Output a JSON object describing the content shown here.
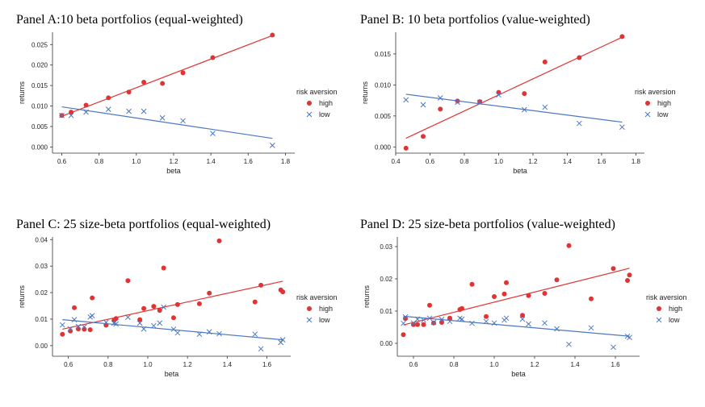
{
  "colors": {
    "high": "#e03434",
    "low": "#4a78c4",
    "axis": "#333333"
  },
  "legend": {
    "title": "risk aversion",
    "high_label": "high",
    "low_label": "low"
  },
  "chart_data": [
    {
      "id": "A",
      "type": "scatter",
      "title": "Panel A:10 beta portfolios (equal-weighted)",
      "xlabel": "beta",
      "ylabel": "returns",
      "xlim": [
        0.55,
        1.85
      ],
      "ylim": [
        -0.0015,
        0.028
      ],
      "xticks": [
        0.6,
        0.8,
        1.0,
        1.2,
        1.4,
        1.6,
        1.8
      ],
      "xtick_labels": [
        "0.6",
        "0.8",
        "1.0",
        "1.2",
        "1.4",
        "1.6",
        "1.8"
      ],
      "yticks": [
        0,
        0.005,
        0.01,
        0.015,
        0.02,
        0.025
      ],
      "ytick_labels": [
        "0.000",
        "0.005",
        "0.010",
        "0.015",
        "0.020",
        "0.025"
      ],
      "series": [
        {
          "name": "high",
          "points": [
            [
              0.6,
              0.0077
            ],
            [
              0.65,
              0.0085
            ],
            [
              0.73,
              0.0102
            ],
            [
              0.85,
              0.012
            ],
            [
              0.96,
              0.0134
            ],
            [
              1.04,
              0.0158
            ],
            [
              1.14,
              0.0155
            ],
            [
              1.25,
              0.0181
            ],
            [
              1.41,
              0.0218
            ],
            [
              1.73,
              0.0273
            ]
          ],
          "fit": [
            [
              0.6,
              0.0075
            ],
            [
              1.73,
              0.0272
            ]
          ]
        },
        {
          "name": "low",
          "points": [
            [
              0.6,
              0.0077
            ],
            [
              0.65,
              0.0077
            ],
            [
              0.73,
              0.0085
            ],
            [
              0.85,
              0.0092
            ],
            [
              0.96,
              0.0087
            ],
            [
              1.04,
              0.0087
            ],
            [
              1.14,
              0.0071
            ],
            [
              1.25,
              0.0064
            ],
            [
              1.41,
              0.0033
            ],
            [
              1.73,
              0.0004
            ]
          ],
          "fit": [
            [
              0.6,
              0.0098
            ],
            [
              1.73,
              0.0021
            ]
          ]
        }
      ],
      "legend_position": "right"
    },
    {
      "id": "B",
      "type": "scatter",
      "title": "Panel B: 10 beta portfolios (value-weighted)",
      "xlabel": "beta",
      "ylabel": "returns",
      "xlim": [
        0.4,
        1.85
      ],
      "ylim": [
        -0.001,
        0.0185
      ],
      "xticks": [
        0.4,
        0.6,
        0.8,
        1.0,
        1.2,
        1.4,
        1.6,
        1.8
      ],
      "xtick_labels": [
        "0.4",
        "0.6",
        "0.8",
        "1.0",
        "1.2",
        "1.4",
        "1.6",
        "1.8"
      ],
      "yticks": [
        0,
        0.005,
        0.01,
        0.015
      ],
      "ytick_labels": [
        "0.000",
        "0.005",
        "0.010",
        "0.015"
      ],
      "series": [
        {
          "name": "high",
          "points": [
            [
              0.46,
              -0.0002
            ],
            [
              0.56,
              0.0017
            ],
            [
              0.66,
              0.0061
            ],
            [
              0.76,
              0.0074
            ],
            [
              0.89,
              0.0073
            ],
            [
              1.0,
              0.0088
            ],
            [
              1.15,
              0.0086
            ],
            [
              1.27,
              0.0137
            ],
            [
              1.47,
              0.0144
            ],
            [
              1.72,
              0.0178
            ]
          ],
          "fit": [
            [
              0.46,
              0.0014
            ],
            [
              1.72,
              0.0177
            ]
          ]
        },
        {
          "name": "low",
          "points": [
            [
              0.46,
              0.0076
            ],
            [
              0.56,
              0.0068
            ],
            [
              0.66,
              0.0079
            ],
            [
              0.76,
              0.0072
            ],
            [
              0.89,
              0.0072
            ],
            [
              1.0,
              0.0084
            ],
            [
              1.15,
              0.006
            ],
            [
              1.27,
              0.0064
            ],
            [
              1.47,
              0.0038
            ],
            [
              1.72,
              0.0032
            ]
          ],
          "fit": [
            [
              0.46,
              0.0085
            ],
            [
              1.72,
              0.004
            ]
          ]
        }
      ],
      "legend_position": "right"
    },
    {
      "id": "C",
      "type": "scatter",
      "title": "Panel C: 25 size-beta portfolios (equal-weighted)",
      "xlabel": "beta",
      "ylabel": "returns",
      "xlim": [
        0.52,
        1.72
      ],
      "ylim": [
        -0.004,
        0.041
      ],
      "xticks": [
        0.6,
        0.8,
        1.0,
        1.2,
        1.4,
        1.6
      ],
      "xtick_labels": [
        "0.6",
        "0.8",
        "1.0",
        "1.2",
        "1.4",
        "1.6"
      ],
      "yticks": [
        0,
        0.01,
        0.02,
        0.03,
        0.04
      ],
      "ytick_labels": [
        "0.00",
        "0.01",
        "0.02",
        "0.03",
        "0.04"
      ],
      "series": [
        {
          "name": "high",
          "points": [
            [
              0.57,
              0.0043
            ],
            [
              0.61,
              0.0055
            ],
            [
              0.63,
              0.0143
            ],
            [
              0.65,
              0.0063
            ],
            [
              0.68,
              0.0062
            ],
            [
              0.71,
              0.006
            ],
            [
              0.72,
              0.018
            ],
            [
              0.79,
              0.0077
            ],
            [
              0.83,
              0.0095
            ],
            [
              0.84,
              0.0102
            ],
            [
              0.9,
              0.0245
            ],
            [
              0.96,
              0.0098
            ],
            [
              0.98,
              0.014
            ],
            [
              1.03,
              0.0148
            ],
            [
              1.06,
              0.0133
            ],
            [
              1.08,
              0.0293
            ],
            [
              1.13,
              0.0105
            ],
            [
              1.15,
              0.0155
            ],
            [
              1.26,
              0.0158
            ],
            [
              1.31,
              0.0198
            ],
            [
              1.36,
              0.0395
            ],
            [
              1.54,
              0.0165
            ],
            [
              1.57,
              0.0228
            ],
            [
              1.67,
              0.021
            ],
            [
              1.68,
              0.0203
            ]
          ],
          "fit": [
            [
              0.57,
              0.0062
            ],
            [
              1.68,
              0.0243
            ]
          ]
        },
        {
          "name": "low",
          "points": [
            [
              0.57,
              0.0078
            ],
            [
              0.61,
              0.0063
            ],
            [
              0.63,
              0.0098
            ],
            [
              0.65,
              0.0072
            ],
            [
              0.68,
              0.0071
            ],
            [
              0.71,
              0.0108
            ],
            [
              0.72,
              0.0113
            ],
            [
              0.79,
              0.0088
            ],
            [
              0.83,
              0.0085
            ],
            [
              0.84,
              0.0082
            ],
            [
              0.9,
              0.0107
            ],
            [
              0.96,
              0.0085
            ],
            [
              0.98,
              0.0063
            ],
            [
              1.03,
              0.0075
            ],
            [
              1.06,
              0.0085
            ],
            [
              1.08,
              0.0145
            ],
            [
              1.13,
              0.0062
            ],
            [
              1.15,
              0.0048
            ],
            [
              1.26,
              0.0043
            ],
            [
              1.31,
              0.0052
            ],
            [
              1.36,
              0.0045
            ],
            [
              1.54,
              0.0043
            ],
            [
              1.57,
              -0.0012
            ],
            [
              1.67,
              0.0012
            ],
            [
              1.68,
              0.0022
            ]
          ],
          "fit": [
            [
              0.57,
              0.0098
            ],
            [
              1.68,
              0.0022
            ]
          ]
        }
      ],
      "legend_position": "right"
    },
    {
      "id": "D",
      "type": "scatter",
      "title": "Panel D: 25 size-beta portfolios (value-weighted)",
      "xlabel": "beta",
      "ylabel": "returns",
      "xlim": [
        0.52,
        1.72
      ],
      "ylim": [
        -0.004,
        0.033
      ],
      "xticks": [
        0.6,
        0.8,
        1.0,
        1.2,
        1.4,
        1.6
      ],
      "xtick_labels": [
        "0.6",
        "0.8",
        "1.0",
        "1.2",
        "1.4",
        "1.6"
      ],
      "yticks": [
        0,
        0.01,
        0.02,
        0.03
      ],
      "ytick_labels": [
        "0.00",
        "0.01",
        "0.02",
        "0.03"
      ],
      "series": [
        {
          "name": "high",
          "points": [
            [
              0.55,
              0.0027
            ],
            [
              0.56,
              0.0077
            ],
            [
              0.6,
              0.0058
            ],
            [
              0.62,
              0.0058
            ],
            [
              0.65,
              0.0058
            ],
            [
              0.68,
              0.0118
            ],
            [
              0.7,
              0.0063
            ],
            [
              0.74,
              0.0065
            ],
            [
              0.78,
              0.0078
            ],
            [
              0.83,
              0.0105
            ],
            [
              0.84,
              0.0108
            ],
            [
              0.89,
              0.0183
            ],
            [
              0.96,
              0.0083
            ],
            [
              1.0,
              0.0145
            ],
            [
              1.05,
              0.0153
            ],
            [
              1.06,
              0.0188
            ],
            [
              1.14,
              0.0087
            ],
            [
              1.17,
              0.0148
            ],
            [
              1.25,
              0.0155
            ],
            [
              1.31,
              0.0197
            ],
            [
              1.37,
              0.0303
            ],
            [
              1.48,
              0.0138
            ],
            [
              1.59,
              0.0232
            ],
            [
              1.66,
              0.0195
            ],
            [
              1.67,
              0.0212
            ]
          ],
          "fit": [
            [
              0.55,
              0.0057
            ],
            [
              1.67,
              0.0233
            ]
          ]
        },
        {
          "name": "low",
          "points": [
            [
              0.55,
              0.0062
            ],
            [
              0.56,
              0.0082
            ],
            [
              0.6,
              0.0063
            ],
            [
              0.62,
              0.0075
            ],
            [
              0.65,
              0.0072
            ],
            [
              0.68,
              0.0078
            ],
            [
              0.7,
              0.0065
            ],
            [
              0.74,
              0.0074
            ],
            [
              0.78,
              0.0068
            ],
            [
              0.83,
              0.0078
            ],
            [
              0.84,
              0.0075
            ],
            [
              0.89,
              0.0062
            ],
            [
              0.96,
              0.0068
            ],
            [
              1.0,
              0.0063
            ],
            [
              1.05,
              0.0072
            ],
            [
              1.06,
              0.0078
            ],
            [
              1.14,
              0.0075
            ],
            [
              1.17,
              0.006
            ],
            [
              1.25,
              0.0063
            ],
            [
              1.31,
              0.0045
            ],
            [
              1.37,
              -0.0003
            ],
            [
              1.48,
              0.0048
            ],
            [
              1.59,
              -0.0012
            ],
            [
              1.66,
              0.0022
            ],
            [
              1.67,
              0.0018
            ]
          ],
          "fit": [
            [
              0.55,
              0.0084
            ],
            [
              1.67,
              0.0022
            ]
          ]
        }
      ],
      "legend_position": "right"
    }
  ]
}
